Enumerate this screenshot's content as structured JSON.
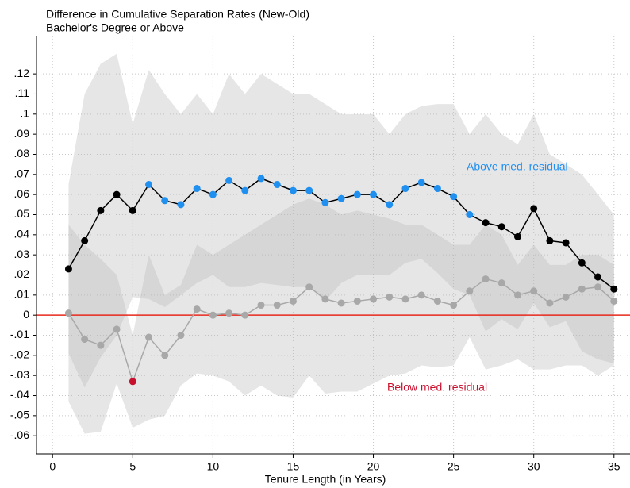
{
  "chart_data": {
    "type": "line",
    "title": "Difference in Cumulative Separation Rates (New-Old)",
    "subtitle": "Bachelor's Degree or Above",
    "x_label": "Tenure Length (in Years)",
    "x": [
      1,
      2,
      3,
      4,
      5,
      6,
      7,
      8,
      9,
      10,
      11,
      12,
      13,
      14,
      15,
      16,
      17,
      18,
      19,
      20,
      21,
      22,
      23,
      24,
      25,
      26,
      27,
      28,
      29,
      30,
      31,
      32,
      33,
      34,
      35
    ],
    "xlim": [
      -1,
      36
    ],
    "ylim": [
      -0.069,
      0.139
    ],
    "xticks": [
      0,
      5,
      10,
      15,
      20,
      25,
      30,
      35
    ],
    "yticks": [
      {
        "value": -0.06,
        "label": "-.06"
      },
      {
        "value": -0.05,
        "label": "-.05"
      },
      {
        "value": -0.04,
        "label": "-.04"
      },
      {
        "value": -0.03,
        "label": "-.03"
      },
      {
        "value": -0.02,
        "label": "-.02"
      },
      {
        "value": -0.01,
        "label": "-.01"
      },
      0,
      {
        "value": 0.01,
        "label": ".01"
      },
      {
        "value": 0.02,
        "label": ".02"
      },
      {
        "value": 0.03,
        "label": ".03"
      },
      {
        "value": 0.04,
        "label": ".04"
      },
      {
        "value": 0.05,
        "label": ".05"
      },
      {
        "value": 0.06,
        "label": ".06"
      },
      {
        "value": 0.07,
        "label": ".07"
      },
      {
        "value": 0.08,
        "label": ".08"
      },
      {
        "value": 0.09,
        "label": ".09"
      },
      {
        "value": 0.1,
        "label": ".1"
      },
      {
        "value": 0.11,
        "label": ".11"
      },
      {
        "value": 0.12,
        "label": ".12"
      }
    ],
    "grid": true,
    "reference_line": {
      "value": 0,
      "color": "#e8291c"
    },
    "series": [
      {
        "name": "Below med. residual",
        "color": "#a8a8a8",
        "label_color": "#c8102e",
        "band_color": "#b8b8b8",
        "values": [
          0.001,
          -0.012,
          -0.015,
          -0.007,
          -0.033,
          -0.011,
          -0.02,
          -0.01,
          0.003,
          0.0,
          0.001,
          0.0,
          0.005,
          0.005,
          0.007,
          0.014,
          0.008,
          0.006,
          0.007,
          0.008,
          0.009,
          0.008,
          0.01,
          0.007,
          0.005,
          0.012,
          0.018,
          0.016,
          0.01,
          0.012,
          0.006,
          0.009,
          0.013,
          0.014,
          0.007
        ],
        "ci_high": [
          0.045,
          0.035,
          0.028,
          0.02,
          -0.01,
          0.03,
          0.01,
          0.015,
          0.035,
          0.03,
          0.035,
          0.04,
          0.045,
          0.05,
          0.055,
          0.058,
          0.055,
          0.05,
          0.052,
          0.05,
          0.048,
          0.045,
          0.045,
          0.04,
          0.035,
          0.035,
          0.045,
          0.04,
          0.025,
          0.035,
          0.025,
          0.025,
          0.03,
          0.03,
          0.025
        ],
        "ci_low": [
          -0.043,
          -0.059,
          -0.058,
          -0.034,
          -0.056,
          -0.052,
          -0.05,
          -0.035,
          -0.029,
          -0.03,
          -0.033,
          -0.04,
          -0.035,
          -0.04,
          -0.041,
          -0.03,
          -0.039,
          -0.038,
          -0.038,
          -0.034,
          -0.03,
          -0.029,
          -0.025,
          -0.026,
          -0.025,
          -0.011,
          -0.027,
          -0.025,
          -0.022,
          -0.027,
          -0.027,
          -0.025,
          -0.025,
          -0.03,
          -0.025
        ],
        "marker_colors": [
          "#a8a8a8",
          "#a8a8a8",
          "#a8a8a8",
          "#a8a8a8",
          "#c8102e",
          "#a8a8a8",
          "#a8a8a8",
          "#a8a8a8",
          "#a8a8a8",
          "#a8a8a8",
          "#a8a8a8",
          "#a8a8a8",
          "#a8a8a8",
          "#a8a8a8",
          "#a8a8a8",
          "#a8a8a8",
          "#a8a8a8",
          "#a8a8a8",
          "#a8a8a8",
          "#a8a8a8",
          "#a8a8a8",
          "#a8a8a8",
          "#a8a8a8",
          "#a8a8a8",
          "#a8a8a8",
          "#a8a8a8",
          "#a8a8a8",
          "#a8a8a8",
          "#a8a8a8",
          "#a8a8a8",
          "#a8a8a8",
          "#a8a8a8",
          "#a8a8a8",
          "#a8a8a8",
          "#a8a8a8"
        ]
      },
      {
        "name": "Above med. residual",
        "color": "#000000",
        "label_color": "#1f8ff0",
        "band_color": "#b8b8b8",
        "values": [
          0.023,
          0.037,
          0.052,
          0.06,
          0.052,
          0.065,
          0.057,
          0.055,
          0.063,
          0.06,
          0.067,
          0.062,
          0.068,
          0.065,
          0.062,
          0.062,
          0.056,
          0.058,
          0.06,
          0.06,
          0.055,
          0.063,
          0.066,
          0.063,
          0.059,
          0.05,
          0.046,
          0.044,
          0.039,
          0.053,
          0.037,
          0.036,
          0.026,
          0.019,
          0.013
        ],
        "ci_high": [
          0.065,
          0.11,
          0.125,
          0.13,
          0.095,
          0.122,
          0.11,
          0.1,
          0.11,
          0.1,
          0.12,
          0.11,
          0.12,
          0.115,
          0.11,
          0.11,
          0.105,
          0.1,
          0.1,
          0.1,
          0.09,
          0.1,
          0.104,
          0.105,
          0.105,
          0.09,
          0.1,
          0.09,
          0.085,
          0.1,
          0.08,
          0.075,
          0.07,
          0.06,
          0.05
        ],
        "ci_low": [
          -0.019,
          -0.036,
          -0.021,
          -0.01,
          0.009,
          0.008,
          0.004,
          0.01,
          0.016,
          0.02,
          0.014,
          0.014,
          0.016,
          0.015,
          0.014,
          0.014,
          0.007,
          0.016,
          0.02,
          0.02,
          0.02,
          0.026,
          0.028,
          0.021,
          0.013,
          0.01,
          -0.008,
          -0.002,
          -0.007,
          0.006,
          -0.006,
          -0.003,
          -0.018,
          -0.022,
          -0.024
        ],
        "marker_colors": [
          "#000000",
          "#000000",
          "#000000",
          "#000000",
          "#000000",
          "#1f8ff0",
          "#1f8ff0",
          "#1f8ff0",
          "#1f8ff0",
          "#1f8ff0",
          "#1f8ff0",
          "#1f8ff0",
          "#1f8ff0",
          "#1f8ff0",
          "#1f8ff0",
          "#1f8ff0",
          "#1f8ff0",
          "#1f8ff0",
          "#1f8ff0",
          "#1f8ff0",
          "#1f8ff0",
          "#1f8ff0",
          "#1f8ff0",
          "#1f8ff0",
          "#1f8ff0",
          "#1f8ff0",
          "#000000",
          "#000000",
          "#000000",
          "#000000",
          "#000000",
          "#000000",
          "#000000",
          "#000000",
          "#000000"
        ]
      }
    ]
  }
}
